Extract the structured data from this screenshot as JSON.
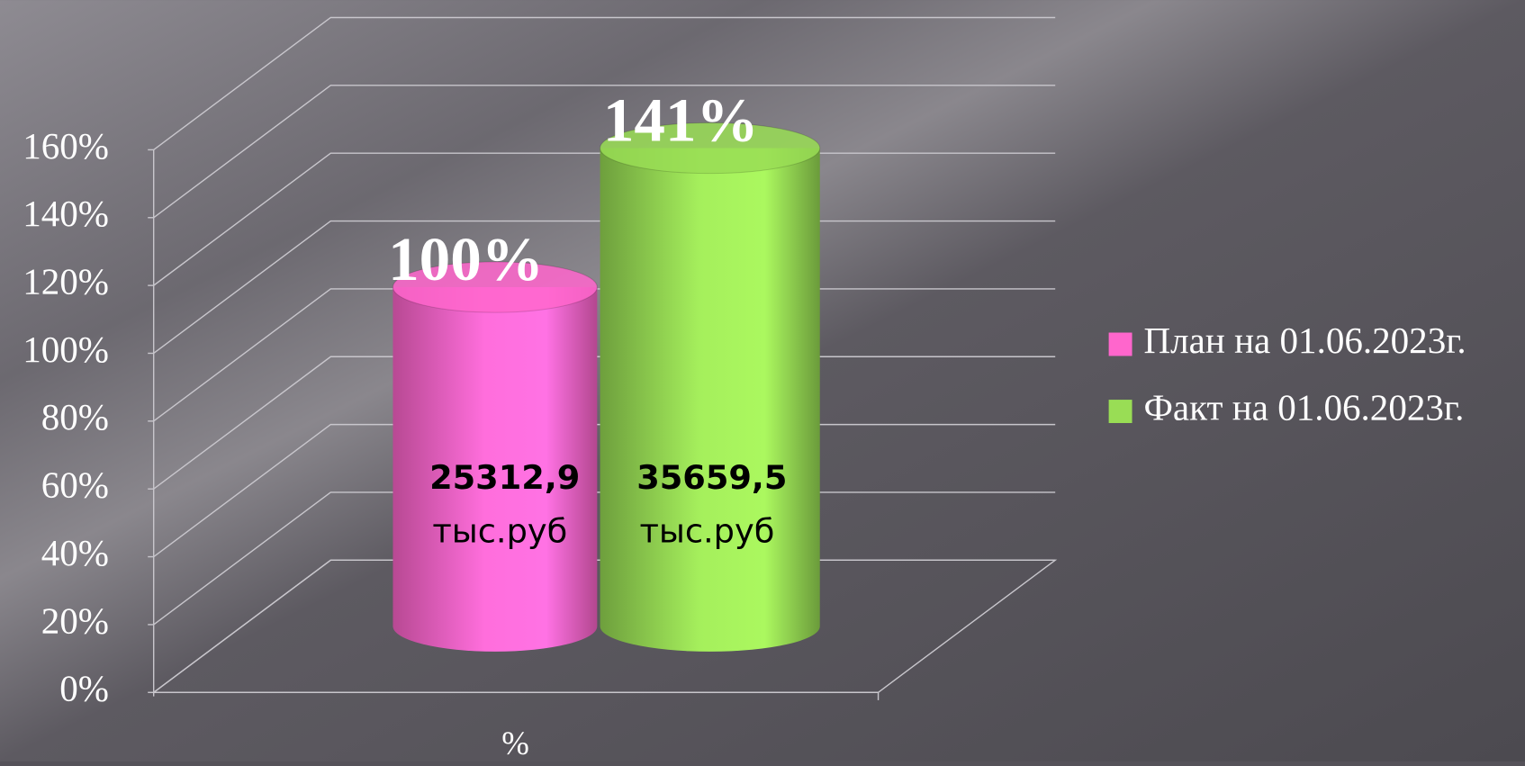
{
  "chart_data": {
    "type": "bar3d",
    "categories": [
      "%"
    ],
    "series": [
      {
        "name": "План на 01.06.2023г.",
        "color": "#ff66cc",
        "values": [
          100
        ],
        "value_labels": [
          "100%"
        ],
        "inner_label": "25312,9",
        "inner_unit": "тыс.руб"
      },
      {
        "name": "Факт на 01.06.2023г.",
        "color": "#99dd55",
        "values": [
          141
        ],
        "value_labels": [
          "141%"
        ],
        "inner_label": "35659,5",
        "inner_unit": "тыс.руб"
      }
    ],
    "ylim": [
      0,
      160
    ],
    "yticks": [
      {
        "value": 0,
        "label": "0%"
      },
      {
        "value": 20,
        "label": "20%"
      },
      {
        "value": 40,
        "label": "40%"
      },
      {
        "value": 60,
        "label": "60%"
      },
      {
        "value": 80,
        "label": "80%"
      },
      {
        "value": 100,
        "label": "100%"
      },
      {
        "value": 120,
        "label": "120%"
      },
      {
        "value": 140,
        "label": "140%"
      },
      {
        "value": 160,
        "label": "160%"
      }
    ],
    "grid": true,
    "legend": "right"
  }
}
